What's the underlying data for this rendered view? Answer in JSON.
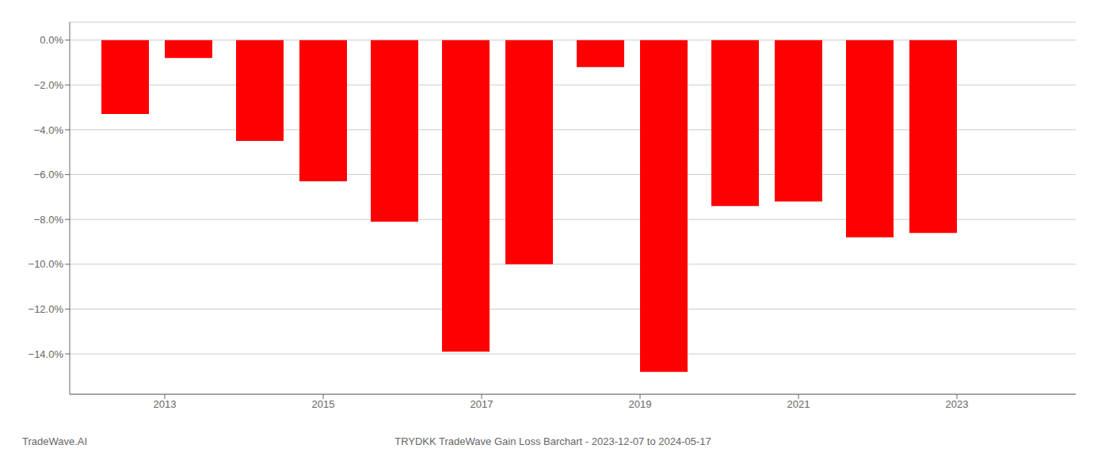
{
  "chart_data": {
    "type": "bar",
    "title": "TRYDKK TradeWave Gain Loss Barchart - 2023-12-07 to 2024-05-17",
    "annotations": [
      "TradeWave.AI"
    ],
    "x": [
      2012.5,
      2013.3,
      2014.2,
      2015.0,
      2015.9,
      2016.8,
      2017.6,
      2018.5,
      2019.3,
      2020.2,
      2021.0,
      2021.9,
      2022.7
    ],
    "values": [
      -3.3,
      -0.8,
      -4.5,
      -6.3,
      -8.1,
      -13.9,
      -10.0,
      -1.2,
      -14.8,
      -7.4,
      -7.2,
      -8.8,
      -8.6
    ],
    "color": "#ff0000",
    "xlim": [
      2011.8,
      2024.5
    ],
    "xticks": [
      2013,
      2015,
      2017,
      2019,
      2021,
      2023
    ],
    "ylim": [
      -15.8,
      0.8
    ],
    "yticks": [
      {
        "value": 0.0,
        "label": "0.0%"
      },
      {
        "value": -2.0,
        "label": "−2.0%"
      },
      {
        "value": -4.0,
        "label": "−4.0%"
      },
      {
        "value": -6.0,
        "label": "−6.0%"
      },
      {
        "value": -8.0,
        "label": "−8.0%"
      },
      {
        "value": -10.0,
        "label": "−10.0%"
      },
      {
        "value": -12.0,
        "label": "−12.0%"
      },
      {
        "value": -14.0,
        "label": "−14.0%"
      }
    ],
    "grid": true
  }
}
